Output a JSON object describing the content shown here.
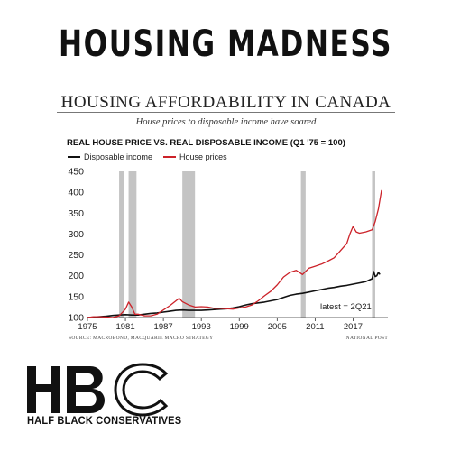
{
  "banner": "HOUSING MADNESS",
  "header": {
    "title": "HOUSING AFFORDABILITY IN CANADA",
    "subtitle": "House prices to disposable income have soared"
  },
  "chart_data": {
    "type": "line",
    "title": "REAL HOUSE PRICE VS. REAL DISPOSABLE INCOME (Q1 '75 = 100)",
    "xlim": [
      1975,
      2022.5
    ],
    "ylim": [
      100,
      450
    ],
    "xticks": [
      "1975",
      "1981",
      "1987",
      "1993",
      "1999",
      "2005",
      "2011",
      "2017"
    ],
    "xtick_values": [
      1975,
      1981,
      1987,
      1993,
      1999,
      2005,
      2011,
      2017
    ],
    "yticks": [
      100,
      150,
      200,
      250,
      300,
      350,
      400,
      450
    ],
    "grid": false,
    "legend_position": "top-left",
    "recession_bands": [
      [
        1980.0,
        1980.75
      ],
      [
        1981.5,
        1982.75
      ],
      [
        1990.0,
        1992.0
      ],
      [
        2008.75,
        2009.5
      ],
      [
        2020.0,
        2020.5
      ]
    ],
    "series": [
      {
        "name": "Disposable income",
        "color": "#111111",
        "x": [
          1975,
          1976,
          1977,
          1978,
          1979,
          1980,
          1981,
          1982,
          1983,
          1984,
          1985,
          1986,
          1987,
          1988,
          1989,
          1990,
          1991,
          1992,
          1993,
          1994,
          1995,
          1996,
          1997,
          1998,
          1999,
          2000,
          2001,
          2002,
          2003,
          2004,
          2005,
          2006,
          2007,
          2008,
          2009,
          2010,
          2011,
          2012,
          2013,
          2014,
          2015,
          2016,
          2017,
          2018,
          2019,
          2020,
          2020.25,
          2020.5,
          2020.75,
          2021,
          2021.25
        ],
        "values": [
          100,
          101,
          102,
          103,
          105,
          106,
          107,
          106,
          106,
          108,
          110,
          111,
          113,
          115,
          117,
          118,
          117,
          117,
          117,
          118,
          119,
          120,
          121,
          123,
          126,
          130,
          133,
          135,
          137,
          140,
          143,
          148,
          153,
          156,
          158,
          161,
          164,
          167,
          170,
          172,
          175,
          177,
          180,
          183,
          186,
          193,
          210,
          198,
          200,
          208,
          203
        ]
      },
      {
        "name": "House prices",
        "color": "#cc2229",
        "x": [
          1975,
          1976,
          1977,
          1978,
          1979,
          1980,
          1980.5,
          1981,
          1981.5,
          1982,
          1982.5,
          1983,
          1984,
          1985,
          1986,
          1987,
          1988,
          1989,
          1989.5,
          1990,
          1991,
          1992,
          1993,
          1994,
          1995,
          1996,
          1997,
          1998,
          1999,
          2000,
          2001,
          2002,
          2003,
          2004,
          2005,
          2006,
          2007,
          2008,
          2009,
          2010,
          2011,
          2012,
          2013,
          2014,
          2015,
          2016,
          2016.5,
          2017,
          2017.5,
          2018,
          2019,
          2020,
          2020.5,
          2021,
          2021.5
        ],
        "values": [
          100,
          102,
          102,
          101,
          100,
          104,
          112,
          120,
          137,
          125,
          108,
          108,
          104,
          104,
          108,
          118,
          128,
          140,
          146,
          138,
          130,
          125,
          126,
          125,
          122,
          122,
          121,
          120,
          123,
          125,
          130,
          140,
          152,
          163,
          178,
          197,
          208,
          213,
          203,
          218,
          223,
          228,
          235,
          243,
          260,
          277,
          300,
          318,
          305,
          302,
          305,
          310,
          330,
          360,
          405
        ]
      }
    ],
    "annotations": [
      "latest = 2Q21"
    ]
  },
  "footer": {
    "source": "SOURCE: MACROBOND, MACQUARIE MACRO STRATEGY",
    "publisher": "NATIONAL POST"
  },
  "logo": {
    "letters": "HBC",
    "text": "HALF BLACK CONSERVATIVES"
  },
  "colors": {
    "income": "#111111",
    "house": "#cc2229",
    "band": "#c4c4c4"
  }
}
